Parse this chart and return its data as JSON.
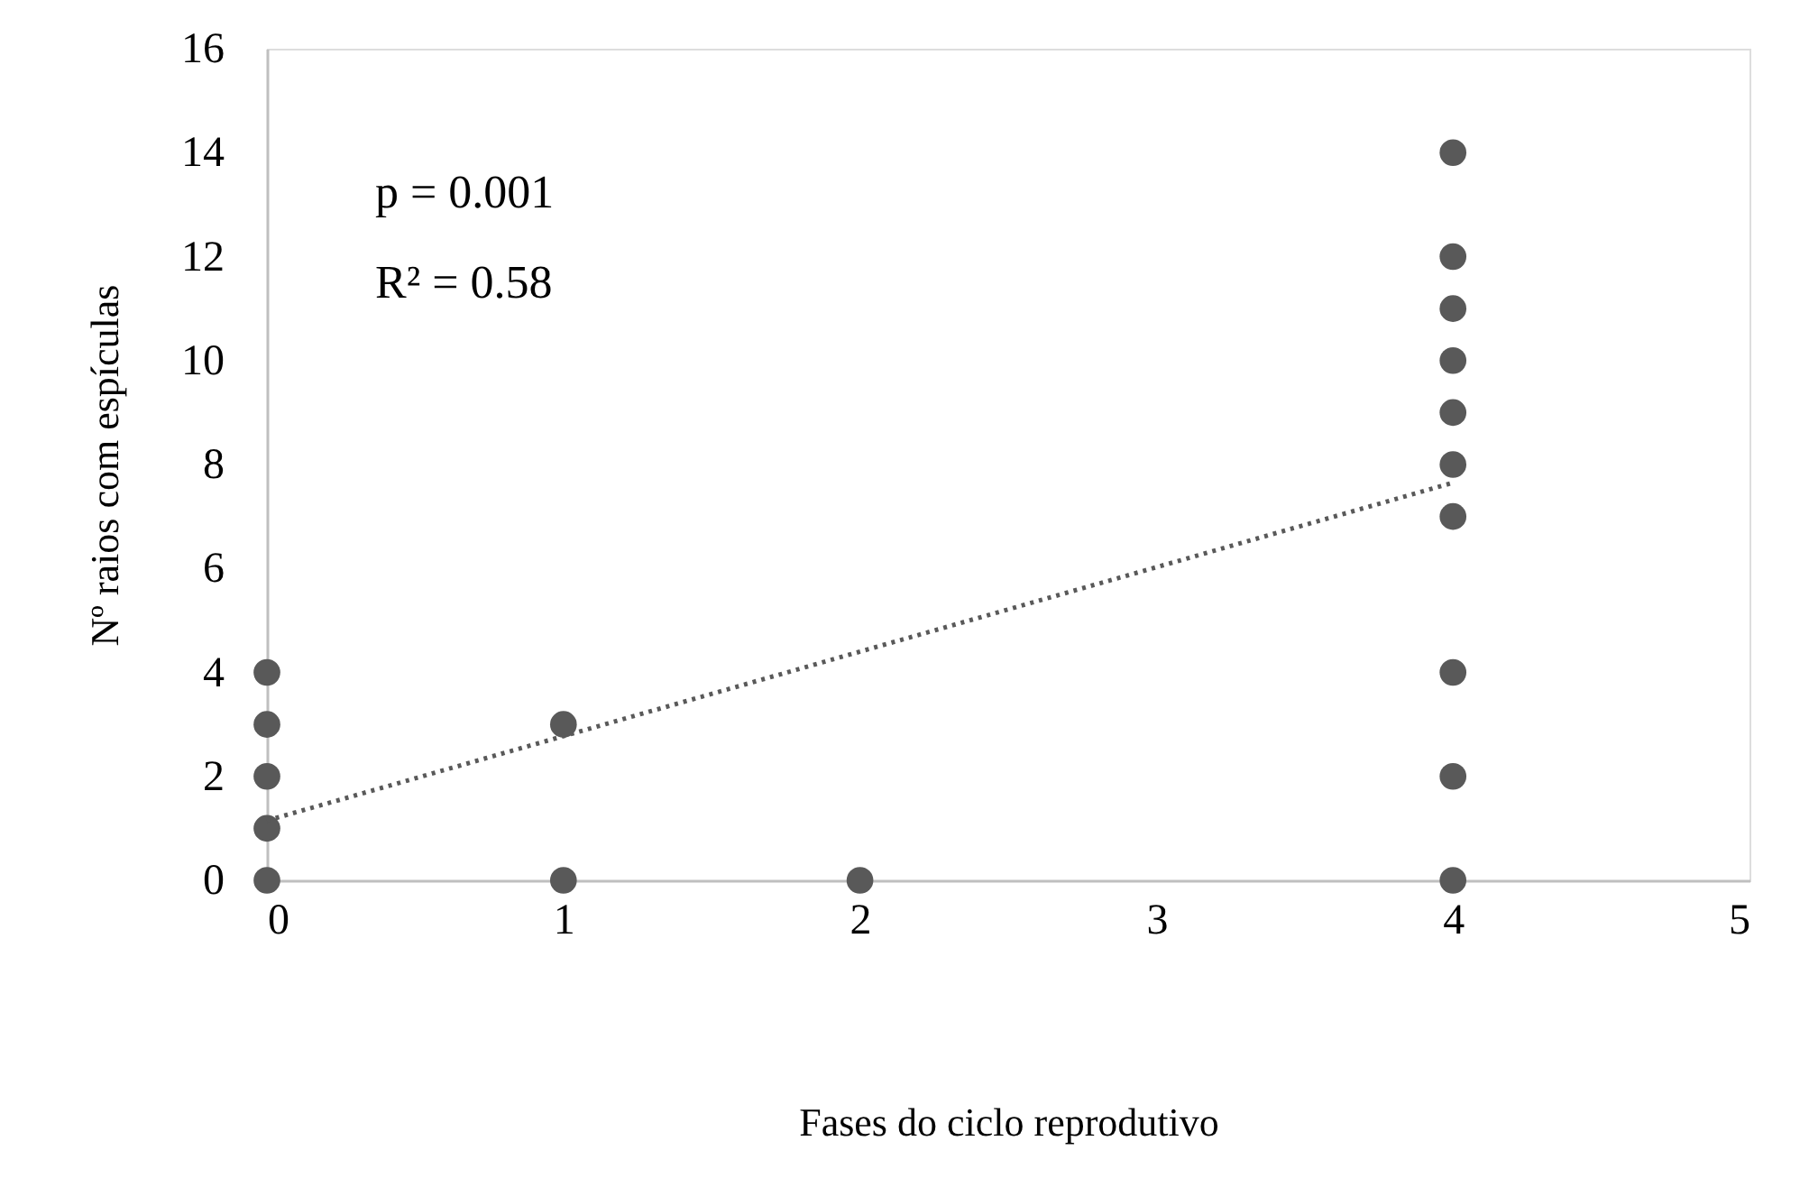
{
  "chart_data": {
    "type": "scatter",
    "xlabel": "Fases do ciclo reprodutivo",
    "ylabel": "Nº raios com espículas",
    "xlim": [
      0,
      5
    ],
    "xticks": [
      0,
      1,
      2,
      3,
      4,
      5
    ],
    "ylim": [
      0,
      16
    ],
    "yticks": [
      0,
      2,
      4,
      6,
      8,
      10,
      12,
      14,
      16
    ],
    "grid": false,
    "annotations": [
      "p = 0.001",
      "R² = 0.58"
    ],
    "series": [
      {
        "color": "#595959",
        "marker": "circle",
        "x": [
          0,
          0,
          0,
          0,
          0,
          1,
          1,
          2,
          4,
          4,
          4,
          4,
          4,
          4,
          4,
          4,
          4,
          4
        ],
        "values": [
          0,
          1,
          2,
          3,
          4,
          3,
          0,
          0,
          0,
          2,
          4,
          7,
          8,
          9,
          10,
          11,
          12,
          14
        ]
      },
      {
        "type": "line",
        "color": "#595959",
        "marker": "none",
        "line_style": "dotted",
        "x": [
          0,
          4
        ],
        "values": [
          1.15,
          7.65
        ]
      }
    ]
  }
}
